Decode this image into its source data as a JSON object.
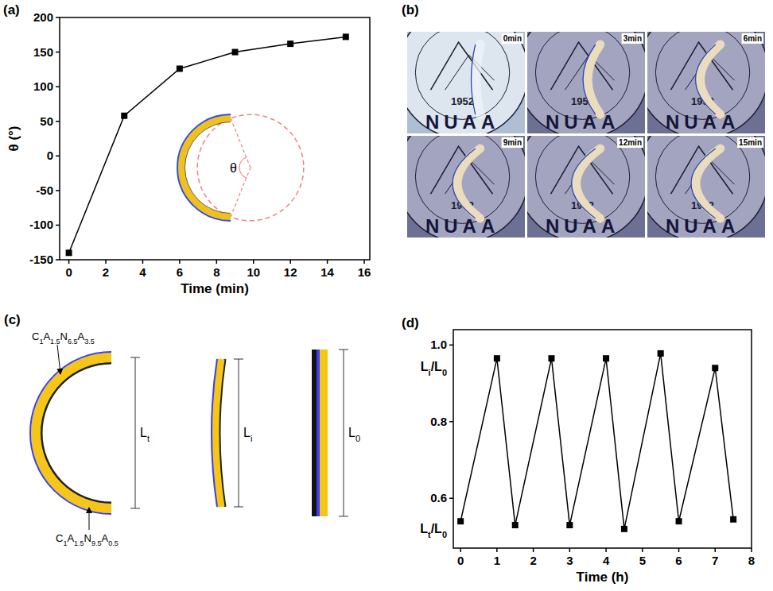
{
  "chart_data": [
    {
      "type": "line",
      "title": "(a)",
      "x_label": "Time (min)",
      "y_label": "θ (°)",
      "x": [
        0,
        3,
        6,
        9,
        12,
        15
      ],
      "values": [
        -140,
        58,
        126,
        150,
        162,
        172
      ],
      "color": "#000000",
      "marker": "square",
      "line_style": "solid",
      "xlim": [
        -0.5,
        16.3
      ],
      "ylim": [
        -150,
        200
      ],
      "xticks": [
        0,
        2,
        4,
        6,
        8,
        10,
        12,
        14,
        16
      ],
      "yticks": [
        -150,
        -100,
        -50,
        0,
        50,
        100,
        150,
        200
      ],
      "annotations": [
        "θ"
      ]
    },
    {
      "type": "line",
      "title": "(d)",
      "x_label": "Time (h)",
      "x": [
        0,
        1,
        1.5,
        2.5,
        3,
        4,
        4.5,
        5.5,
        6,
        7,
        7.5
      ],
      "values": [
        0.54,
        0.965,
        0.53,
        0.965,
        0.53,
        0.965,
        0.52,
        0.978,
        0.54,
        0.94,
        0.545
      ],
      "color": "#000000",
      "marker": "square",
      "line_style": "solid",
      "xlim": [
        -0.2,
        8
      ],
      "ylim": [
        0.47,
        1.04
      ],
      "xticks": [
        0,
        1,
        2,
        3,
        4,
        5,
        6,
        7,
        8
      ],
      "yticks": [
        0.6,
        0.8,
        {
          "value": 1,
          "label": "1.0"
        }
      ],
      "annotations": [
        "Li/L0",
        "Lt/L0"
      ]
    }
  ],
  "panel_b": {
    "label": "(b)",
    "emblem_text": "NUAA",
    "year": "1952",
    "frames": [
      "0min",
      "3min",
      "6min",
      "9min",
      "12min",
      "15min"
    ]
  },
  "panel_c": {
    "label": "(c)",
    "outer_layer": "C1A1.5N6.5A3.5",
    "inner_layer": "C1A1.5N9.5A0.5",
    "lengths": [
      "Lt",
      "Li",
      "L0"
    ]
  }
}
